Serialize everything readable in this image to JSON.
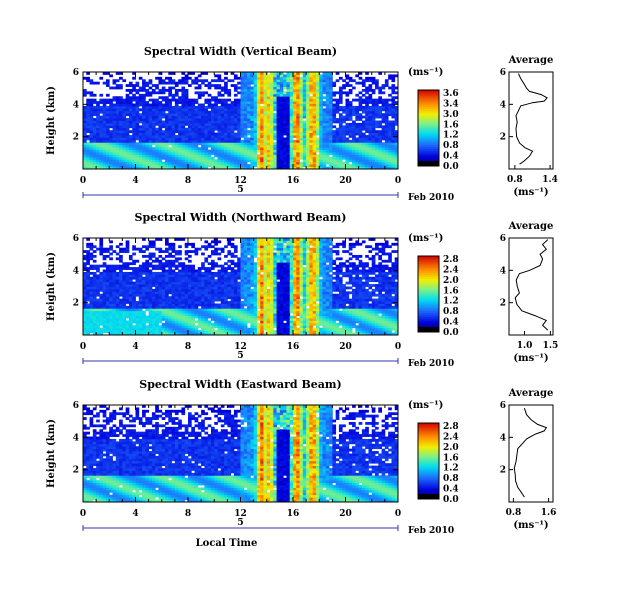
{
  "chart_data": [
    {
      "type": "heatmap",
      "title": "Spectral Width (Vertical Beam)",
      "ylabel": "Height (km)",
      "xticks": [
        "0",
        "4",
        "8",
        "12",
        "16",
        "20",
        "0"
      ],
      "yticks": [
        "6",
        "4",
        "2"
      ],
      "xlim": [
        0,
        24
      ],
      "ylim": [
        0,
        6
      ],
      "date_day": "5",
      "date_label": "Feb 2010",
      "colorbar": {
        "unit": "(ms⁻¹)",
        "ticks": [
          "3.6",
          "3.4",
          "3.0",
          "1.6",
          "1.2",
          "0.8",
          "0.4",
          "0.0"
        ]
      },
      "average": {
        "title": "Average",
        "xlabel": "(ms⁻¹)",
        "xticks": [
          "0.8",
          "1.4"
        ],
        "yticks": [
          "6",
          "4",
          "2"
        ],
        "xlim": [
          0.7,
          1.45
        ],
        "profile": [
          [
            0.88,
            0.3
          ],
          [
            0.96,
            0.5
          ],
          [
            1.05,
            0.8
          ],
          [
            1.1,
            1.1
          ],
          [
            0.98,
            1.3
          ],
          [
            0.88,
            1.6
          ],
          [
            0.83,
            2.0
          ],
          [
            0.82,
            2.5
          ],
          [
            0.84,
            2.9
          ],
          [
            0.82,
            3.3
          ],
          [
            0.86,
            3.6
          ],
          [
            0.9,
            3.9
          ],
          [
            1.0,
            4.0
          ],
          [
            1.1,
            4.1
          ],
          [
            1.3,
            4.2
          ],
          [
            1.35,
            4.4
          ],
          [
            1.25,
            4.6
          ],
          [
            1.05,
            4.8
          ],
          [
            1.0,
            5.0
          ],
          [
            0.95,
            5.3
          ],
          [
            0.9,
            5.6
          ],
          [
            0.86,
            5.9
          ]
        ]
      }
    },
    {
      "type": "heatmap",
      "title": "Spectral Width (Northward Beam)",
      "ylabel": "Height (km)",
      "xticks": [
        "0",
        "4",
        "8",
        "12",
        "16",
        "20",
        "0"
      ],
      "yticks": [
        "6",
        "4",
        "2"
      ],
      "xlim": [
        0,
        24
      ],
      "ylim": [
        0,
        6
      ],
      "date_day": "5",
      "date_label": "Feb 2010",
      "colorbar": {
        "unit": "(ms⁻¹)",
        "ticks": [
          "2.8",
          "2.4",
          "2.0",
          "1.6",
          "1.2",
          "0.8",
          "0.4",
          "0.0"
        ]
      },
      "average": {
        "title": "Average",
        "xlabel": "(ms⁻¹)",
        "xticks": [
          "1.0",
          "1.5"
        ],
        "yticks": [
          "6",
          "4",
          "2"
        ],
        "xlim": [
          0.7,
          1.55
        ],
        "profile": [
          [
            1.45,
            0.3
          ],
          [
            1.35,
            0.6
          ],
          [
            1.42,
            0.9
          ],
          [
            1.2,
            1.2
          ],
          [
            0.95,
            1.5
          ],
          [
            0.85,
            1.9
          ],
          [
            0.82,
            2.3
          ],
          [
            0.9,
            2.6
          ],
          [
            0.86,
            3.0
          ],
          [
            0.84,
            3.4
          ],
          [
            0.9,
            3.8
          ],
          [
            1.1,
            4.0
          ],
          [
            1.3,
            4.3
          ],
          [
            1.35,
            4.7
          ],
          [
            1.3,
            5.0
          ],
          [
            1.42,
            5.3
          ],
          [
            1.35,
            5.6
          ],
          [
            1.45,
            5.9
          ]
        ]
      }
    },
    {
      "type": "heatmap",
      "title": "Spectral Width (Eastward Beam)",
      "ylabel": "Height (km)",
      "xticks": [
        "0",
        "4",
        "8",
        "12",
        "16",
        "20",
        "0"
      ],
      "yticks": [
        "6",
        "4",
        "2"
      ],
      "xlim": [
        0,
        24
      ],
      "ylim": [
        0,
        6
      ],
      "date_day": "5",
      "date_label": "Feb 2010",
      "xlabel": "Local Time",
      "colorbar": {
        "unit": "(ms⁻¹)",
        "ticks": [
          "2.8",
          "2.4",
          "2.0",
          "1.6",
          "1.2",
          "0.8",
          "0.4",
          "0.0"
        ]
      },
      "average": {
        "title": "Average",
        "xlabel": "(ms⁻¹)",
        "xticks": [
          "0.8",
          "1.6"
        ],
        "yticks": [
          "6",
          "4",
          "2"
        ],
        "xlim": [
          0.7,
          1.7
        ],
        "profile": [
          [
            1.05,
            0.3
          ],
          [
            0.98,
            0.6
          ],
          [
            0.9,
            0.9
          ],
          [
            0.85,
            1.3
          ],
          [
            0.84,
            1.7
          ],
          [
            0.82,
            2.1
          ],
          [
            0.86,
            2.5
          ],
          [
            0.88,
            2.9
          ],
          [
            0.9,
            3.3
          ],
          [
            1.0,
            3.6
          ],
          [
            1.1,
            3.9
          ],
          [
            1.3,
            4.2
          ],
          [
            1.5,
            4.4
          ],
          [
            1.55,
            4.6
          ],
          [
            1.35,
            4.8
          ],
          [
            1.2,
            5.1
          ],
          [
            1.1,
            5.4
          ],
          [
            1.05,
            5.8
          ]
        ]
      }
    }
  ]
}
